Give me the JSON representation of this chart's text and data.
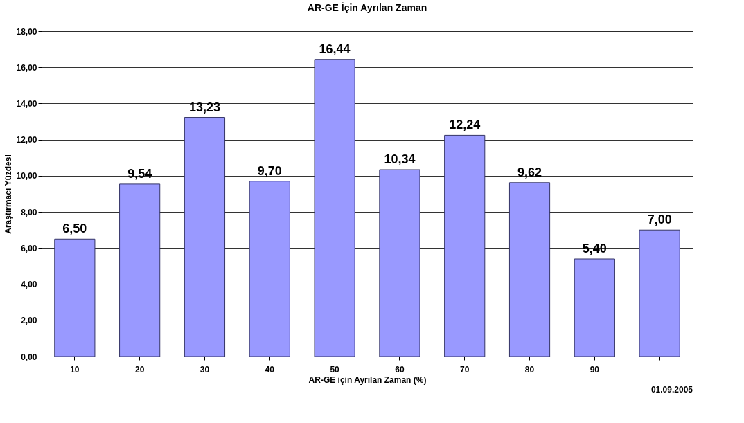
{
  "chart_data": {
    "type": "bar",
    "title": "AR-GE İçin Ayrılan Zaman",
    "xlabel": "AR-GE için Ayrılan Zaman  (%)",
    "ylabel": "Araştırmacı Yüzdesi",
    "categories": [
      "10",
      "20",
      "30",
      "40",
      "50",
      "60",
      "70",
      "80",
      "90",
      null
    ],
    "values": [
      6.5,
      9.54,
      13.23,
      9.7,
      16.44,
      10.34,
      12.24,
      9.62,
      5.4,
      7.0
    ],
    "value_labels": [
      "6,50",
      "9,54",
      "13,23",
      "9,70",
      "16,44",
      "10,34",
      "12,24",
      "9,62",
      "5,40",
      "7,00"
    ],
    "color": "#9999ff",
    "ylim": [
      0,
      18
    ],
    "yticks": [
      {
        "value": 0,
        "label": "0,00"
      },
      {
        "value": 2,
        "label": "2,00"
      },
      {
        "value": 4,
        "label": "4,00"
      },
      {
        "value": 6,
        "label": "6,00"
      },
      {
        "value": 8,
        "label": "8,00"
      },
      {
        "value": 10,
        "label": "10,00"
      },
      {
        "value": 12,
        "label": "12,00"
      },
      {
        "value": 14,
        "label": "14,00"
      },
      {
        "value": 16,
        "label": "16,00"
      },
      {
        "value": 18,
        "label": "18,00"
      }
    ],
    "grid": "y",
    "annotations": [
      "01.09.2005"
    ]
  }
}
